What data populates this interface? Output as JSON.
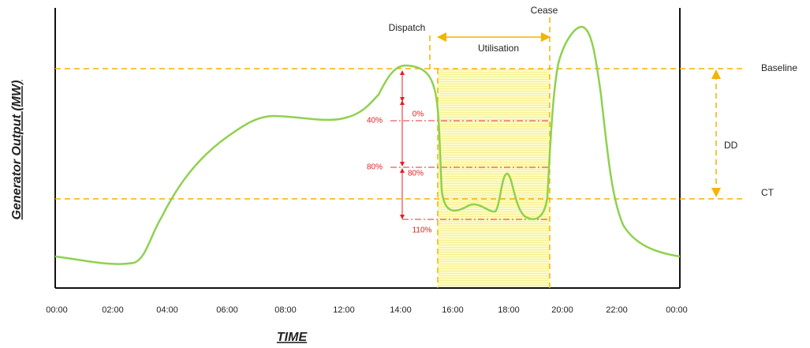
{
  "axis": {
    "y_label": "Generator Output  (MW)",
    "x_label": "TIME",
    "x_ticks": [
      "00:00",
      "02:00",
      "04:00",
      "06:00",
      "08:00",
      "12:00",
      "14:00",
      "16:00",
      "18:00",
      "20:00",
      "22:00",
      "00:00"
    ]
  },
  "levels": {
    "baseline": "Baseline",
    "ct": "CT",
    "dd": "DD"
  },
  "events": {
    "dispatch": "Dispatch",
    "cease": "Cease",
    "utilisation": "Utilisation"
  },
  "percent_marks": {
    "left_40": "40%",
    "left_80": "80%",
    "right_0": "0%",
    "right_80": "80%",
    "right_110": "110%"
  }
}
